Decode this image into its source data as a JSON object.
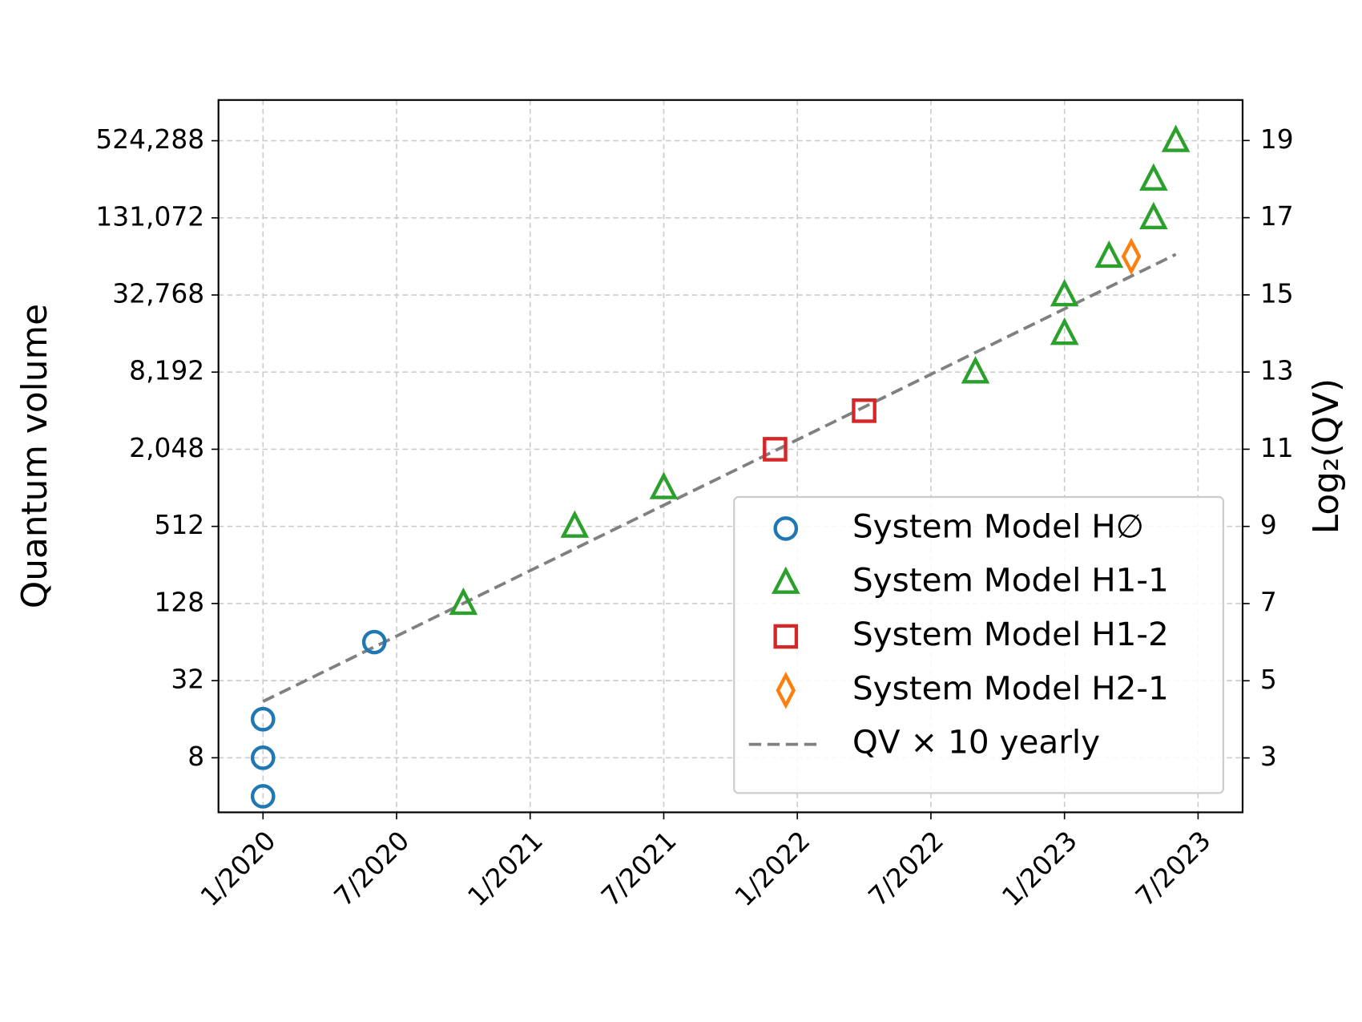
{
  "chart_data": {
    "type": "scatter",
    "y_label": "Quantum volume",
    "y2_label": "Log₂(QV)",
    "yscale": "log",
    "log_base": 2,
    "grid": true,
    "legend": "lower right",
    "xlim": [
      "2019-11",
      "2023-09"
    ],
    "xticks": [
      {
        "value": "2020-01",
        "label": "1/2020"
      },
      {
        "value": "2020-07",
        "label": "7/2020"
      },
      {
        "value": "2021-01",
        "label": "1/2021"
      },
      {
        "value": "2021-07",
        "label": "7/2021"
      },
      {
        "value": "2022-01",
        "label": "1/2022"
      },
      {
        "value": "2022-07",
        "label": "7/2022"
      },
      {
        "value": "2023-01",
        "label": "1/2023"
      },
      {
        "value": "2023-07",
        "label": "7/2023"
      }
    ],
    "ylim": [
      3,
      1090000
    ],
    "yticks": [
      8,
      32,
      128,
      512,
      {
        "value": 2048,
        "label": "2,048"
      },
      {
        "value": 8192,
        "label": "8,192"
      },
      {
        "value": 32768,
        "label": "32,768"
      },
      {
        "value": 131072,
        "label": "131,072"
      },
      {
        "value": 524288,
        "label": "524,288"
      }
    ],
    "y2lim": [
      1.59,
      20.05
    ],
    "y2ticks": [
      3,
      5,
      7,
      9,
      11,
      13,
      15,
      17,
      19
    ],
    "series": [
      {
        "name": "System Model H∅",
        "color": "#1f77b4",
        "marker": "circle",
        "x": [
          "2020-01",
          "2020-01",
          "2020-01",
          "2020-06"
        ],
        "values": [
          4,
          8,
          16,
          64
        ]
      },
      {
        "name": "System Model H1-1",
        "color": "#2ca02c",
        "marker": "triangle",
        "x": [
          "2020-10",
          "2021-03",
          "2021-07",
          "2022-09",
          "2023-01",
          "2023-01",
          "2023-03",
          "2023-05",
          "2023-05",
          "2023-06"
        ],
        "values": [
          128,
          512,
          1024,
          8192,
          16384,
          32768,
          65536,
          131072,
          262144,
          524288
        ]
      },
      {
        "name": "System Model H1-2",
        "color": "#d62728",
        "marker": "square",
        "x": [
          "2021-12",
          "2022-04"
        ],
        "values": [
          2048,
          4096
        ]
      },
      {
        "name": "System Model H2-1",
        "color": "#ff7f0e",
        "marker": "diamond",
        "x": [
          "2023-04"
        ],
        "values": [
          65536
        ]
      },
      {
        "name": "QV × 10 yearly",
        "color": "#808080",
        "marker": "dashed-line",
        "x": [
          "2020-01",
          "2023-06"
        ],
        "values": [
          22,
          68000
        ]
      }
    ]
  }
}
